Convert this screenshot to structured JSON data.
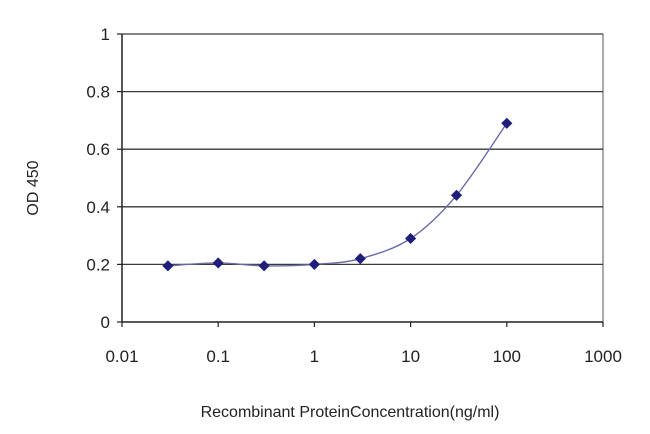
{
  "chart_data": {
    "type": "line",
    "title": "",
    "xlabel": "Recombinant ProteinConcentration(ng/ml)",
    "ylabel": "OD 450",
    "x_scale": "log",
    "xlim": [
      0.01,
      1000
    ],
    "ylim": [
      0,
      1
    ],
    "x_ticks": [
      0.01,
      0.1,
      1,
      10,
      100,
      1000
    ],
    "x_tick_labels": [
      "0.01",
      "0.1",
      "1",
      "10",
      "100",
      "1000"
    ],
    "y_ticks": [
      0,
      0.2,
      0.4,
      0.6,
      0.8,
      1
    ],
    "y_tick_labels": [
      "0",
      "0.2",
      "0.4",
      "0.6",
      "0.8",
      "1"
    ],
    "grid": "horizontal",
    "legend": "none",
    "series": [
      {
        "color": "#1f1f7a",
        "marker": "diamond",
        "x": [
          0.03,
          0.1,
          0.3,
          1,
          3,
          10,
          30,
          100
        ],
        "y": [
          0.195,
          0.205,
          0.195,
          0.2,
          0.22,
          0.29,
          0.44,
          0.69
        ]
      }
    ]
  }
}
